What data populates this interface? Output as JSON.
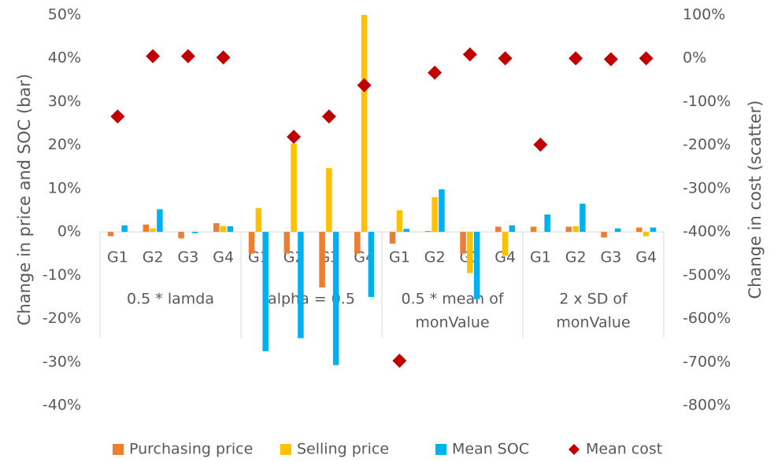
{
  "chart_data": {
    "type": "bar",
    "y_axis_label": "Change in price and SOC (bar)",
    "y2_axis_label": "Change in cost (scatter)",
    "categories": [
      "G1",
      "G2",
      "G3",
      "G4",
      "G1",
      "G2",
      "G3",
      "G4",
      "G1",
      "G2",
      "G3",
      "G4",
      "G1",
      "G2",
      "G3",
      "G4"
    ],
    "groups": [
      [
        "0.5 * lamda"
      ],
      [
        "alpha = 0.5"
      ],
      [
        "0.5 * mean of",
        "monValue"
      ],
      [
        "2 x SD of",
        "monValue"
      ]
    ],
    "series": [
      {
        "name": "Purchasing price",
        "color": "#ED7D31",
        "type": "bar",
        "values": [
          -1,
          1.7,
          -1.5,
          2,
          -5,
          -5,
          -12.8,
          -5,
          -2.7,
          0.2,
          -5,
          1.2,
          1.2,
          1.2,
          -1.3,
          1
        ]
      },
      {
        "name": "Selling price",
        "color": "#FFC000",
        "type": "bar",
        "values": [
          0,
          0.8,
          0,
          1.3,
          5.5,
          20.3,
          14.7,
          50,
          5,
          8,
          -9.5,
          -5.5,
          0,
          1.3,
          0,
          -1
        ]
      },
      {
        "name": "Mean SOC",
        "color": "#00B0F0",
        "type": "bar",
        "values": [
          1.5,
          5.2,
          -0.3,
          1.3,
          -27.5,
          -24.5,
          -30.7,
          -15,
          0.7,
          9.8,
          -15.5,
          1.5,
          4,
          6.5,
          0.8,
          1
        ]
      },
      {
        "name": "Mean cost",
        "color": "#C00000",
        "type": "scatter",
        "axis": "y2",
        "values": [
          -134,
          5,
          5,
          2,
          null,
          -181,
          -134,
          -62,
          -697,
          -33,
          9,
          0,
          -199,
          0,
          -2,
          0
        ]
      }
    ],
    "ylim": [
      -40,
      50
    ],
    "yticks": [
      {
        "value": -40,
        "label": "-40%"
      },
      {
        "value": -30,
        "label": "-30%"
      },
      {
        "value": -20,
        "label": "-20%"
      },
      {
        "value": -10,
        "label": "-10%"
      },
      {
        "value": 0,
        "label": "0%"
      },
      {
        "value": 10,
        "label": "10%"
      },
      {
        "value": 20,
        "label": "20%"
      },
      {
        "value": 30,
        "label": "30%"
      },
      {
        "value": 40,
        "label": "40%"
      },
      {
        "value": 50,
        "label": "50%"
      }
    ],
    "y2lim": [
      -800,
      100
    ],
    "y2ticks": [
      {
        "value": -800,
        "label": "-800%"
      },
      {
        "value": -700,
        "label": "-700%"
      },
      {
        "value": -600,
        "label": "-600%"
      },
      {
        "value": -500,
        "label": "-500%"
      },
      {
        "value": -400,
        "label": "-400%"
      },
      {
        "value": -300,
        "label": "-300%"
      },
      {
        "value": -200,
        "label": "-200%"
      },
      {
        "value": -100,
        "label": "-100%"
      },
      {
        "value": 0,
        "label": "0%"
      },
      {
        "value": 100,
        "label": "100%"
      }
    ],
    "legend": "bottom"
  }
}
